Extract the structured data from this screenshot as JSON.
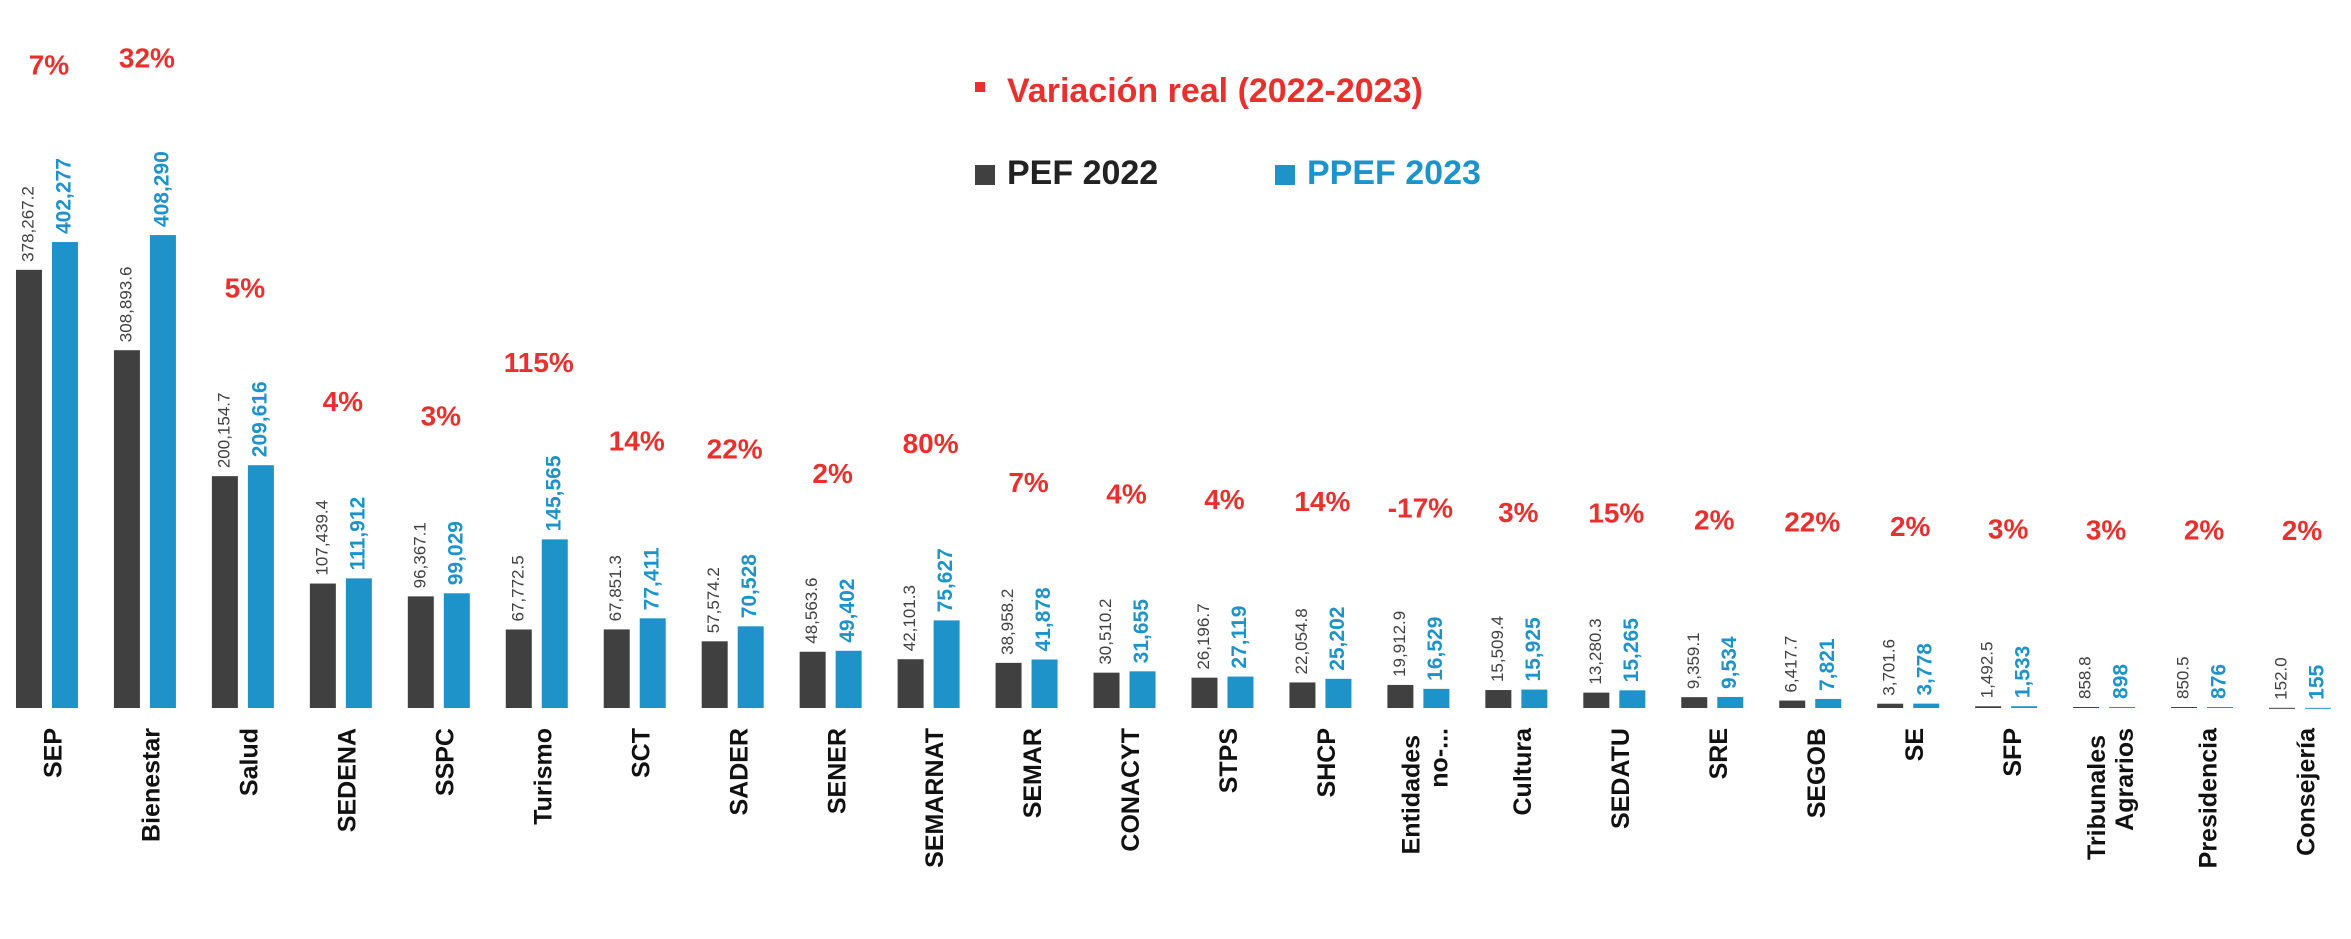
{
  "chart_data": {
    "type": "bar",
    "categories": [
      "SEP",
      "Bienestar",
      "Salud",
      "SEDENA",
      "SSPC",
      "Turismo",
      "SCT",
      "SADER",
      "SENER",
      "SEMARNAT",
      "SEMAR",
      "CONACYT",
      "STPS",
      "SHCP",
      "Entidades no-...",
      "Cultura",
      "SEDATU",
      "SRE",
      "SEGOB",
      "SE",
      "SFP",
      "Tribunales Agrarios",
      "Presidencia",
      "Consejería"
    ],
    "series": [
      {
        "name": "PEF 2022",
        "color": "#404040",
        "values": [
          378267.2,
          308893.6,
          200154.7,
          107439.4,
          96367.1,
          67772.5,
          67851.3,
          57574.2,
          48563.6,
          42101.3,
          38958.2,
          30510.2,
          26196.7,
          22054.8,
          19912.9,
          15509.4,
          13280.3,
          9359.1,
          6417.7,
          3701.6,
          1492.5,
          858.8,
          850.5,
          152.0
        ],
        "value_labels": [
          "378,267.2",
          "308,893.6",
          "200,154.7",
          "107,439.4",
          "96,367.1",
          "67,772.5",
          "67,851.3",
          "57,574.2",
          "48,563.6",
          "42,101.3",
          "38,958.2",
          "30,510.2",
          "26,196.7",
          "22,054.8",
          "19,912.9",
          "15,509.4",
          "13,280.3",
          "9,359.1",
          "6,417.7",
          "3,701.6",
          "1,492.5",
          "858.8",
          "850.5",
          "152.0"
        ]
      },
      {
        "name": "PPEF 2023",
        "color": "#1e93c9",
        "values": [
          402277,
          408290,
          209616,
          111912,
          99029,
          145565,
          77411,
          70528,
          49402,
          75627,
          41878,
          31655,
          27119,
          25202,
          16529,
          15925,
          15265,
          9534,
          7821,
          3778,
          1533,
          898,
          876,
          155
        ],
        "value_labels": [
          "402,277",
          "408,290",
          "209,616",
          "111,912",
          "99,029",
          "145,565",
          "77,411",
          "70,528",
          "49,402",
          "75,627",
          "41,878",
          "31,655",
          "27,119",
          "25,202",
          "16,529",
          "15,925",
          "15,265",
          "9,534",
          "7,821",
          "3,778",
          "1,533",
          "898",
          "876",
          "155"
        ]
      }
    ],
    "variation": {
      "name": "Variación real (2022-2023)",
      "color": "#e8312f",
      "values": [
        7,
        32,
        5,
        4,
        3,
        115,
        14,
        22,
        2,
        80,
        7,
        4,
        4,
        14,
        -17,
        3,
        15,
        2,
        22,
        2,
        3,
        3,
        2,
        2
      ],
      "value_labels": [
        "7%",
        "32%",
        "5%",
        "4%",
        "3%",
        "115%",
        "14%",
        "22%",
        "2%",
        "80%",
        "7%",
        "4%",
        "4%",
        "14%",
        "-17%",
        "3%",
        "15%",
        "2%",
        "22%",
        "2%",
        "3%",
        "3%",
        "2%",
        "2%"
      ]
    },
    "ylim": [
      0,
      600000
    ]
  }
}
